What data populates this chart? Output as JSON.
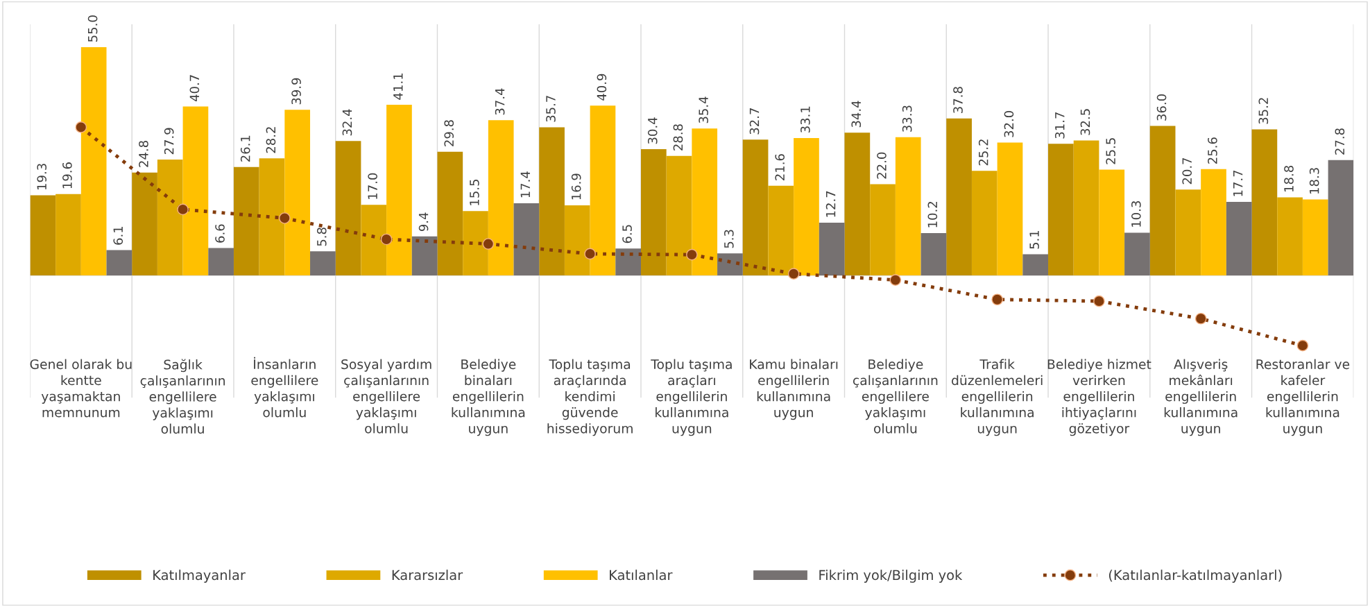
{
  "chart_data": {
    "type": "bar",
    "categories": [
      "Genel olarak bu\nkentte\nyaşamaktan\nmemnunum",
      "Sağlık\nçalışanlarının\nengellilere\nyaklaşımı\nolumlu",
      "İnsanların\nengellilere\nyaklaşımı\nolumlu",
      "Sosyal yardım\nçalışanlarının\nengellilere\nyaklaşımı\nolumlu",
      "Belediye\nbinaları\nengellilerin\nkullanımına\nuygun",
      "Toplu taşıma\naraçlarında\nkendimi\ngüvende\nhissediyorum",
      "Toplu taşıma\naraçları\nengellilerin\nkullanımına\nuygun",
      "Kamu binaları\nengellilerin\nkullanımına\nuygun",
      "Belediye\nçalışanlarının\nengellilere\nyaklaşımı\nolumlu",
      "Trafik\ndüzenlemeleri\nengellilerin\nkullanımına\nuygun",
      "Belediye hizmet\nverirken\nengellilerin\nihtiyaçlarını\ngözetiyor",
      "Alışveriş\nmekânları\nengellilerin\nkullanımına\nuygun",
      "Restoranlar ve\nkafeler\nengellilerin\nkullanımına\nuygun"
    ],
    "series": [
      {
        "name": "Katılmayanlar",
        "color": "#bf9000",
        "values": [
          19.3,
          24.8,
          26.1,
          32.4,
          29.8,
          35.7,
          30.4,
          32.7,
          34.4,
          37.8,
          31.7,
          36.0,
          35.2
        ],
        "value_labels": [
          "19.3",
          "24.8",
          "26.1",
          "32.4",
          "29.8",
          "35.7",
          "30.4",
          "32.7",
          "34.4",
          "37.8",
          "31.7",
          "36.0",
          "35.2"
        ]
      },
      {
        "name": "Kararsızlar",
        "color": "#dea900",
        "values": [
          19.6,
          27.9,
          28.2,
          17.0,
          15.5,
          16.9,
          28.8,
          21.6,
          22.0,
          25.2,
          32.5,
          20.7,
          18.8
        ],
        "value_labels": [
          "19.6",
          "27.9",
          "28.2",
          "17.0",
          "15.5",
          "16.9",
          "28.8",
          "21.6",
          "22.0",
          "25.2",
          "32.5",
          "20.7",
          "18.8"
        ]
      },
      {
        "name": "Katılanlar",
        "color": "#ffc000",
        "values": [
          55.0,
          40.7,
          39.9,
          41.1,
          37.4,
          40.9,
          35.4,
          33.1,
          33.3,
          32.0,
          25.5,
          25.6,
          18.3
        ],
        "value_labels": [
          "55.0",
          "40.7",
          "39.9",
          "41.1",
          "37.4",
          "40.9",
          "35.4",
          "33.1",
          "33.3",
          "32.0",
          "25.5",
          "25.6",
          "18.3"
        ]
      },
      {
        "name": "Fikrim yok/Bilgim yok",
        "color": "#767171",
        "values": [
          6.1,
          6.6,
          5.8,
          9.4,
          17.4,
          6.5,
          5.3,
          12.7,
          10.2,
          5.1,
          10.3,
          17.7,
          27.8
        ],
        "value_labels": [
          "6.1",
          "6.6",
          "5.8",
          "9.4",
          "17.4",
          "6.5",
          "5.3",
          "12.7",
          "10.2",
          "5.1",
          "10.3",
          "17.7",
          "27.8"
        ]
      },
      {
        "name": "(Katılanlar-katılmayanlarl)",
        "color": "#843c0c",
        "type": "line",
        "line_style": "dotted",
        "marker": "circle",
        "values": [
          35.7,
          15.9,
          13.8,
          8.7,
          7.6,
          5.2,
          5.0,
          0.4,
          -1.1,
          -5.8,
          -6.2,
          -10.4,
          -16.9
        ]
      }
    ],
    "legend": "bottom"
  }
}
